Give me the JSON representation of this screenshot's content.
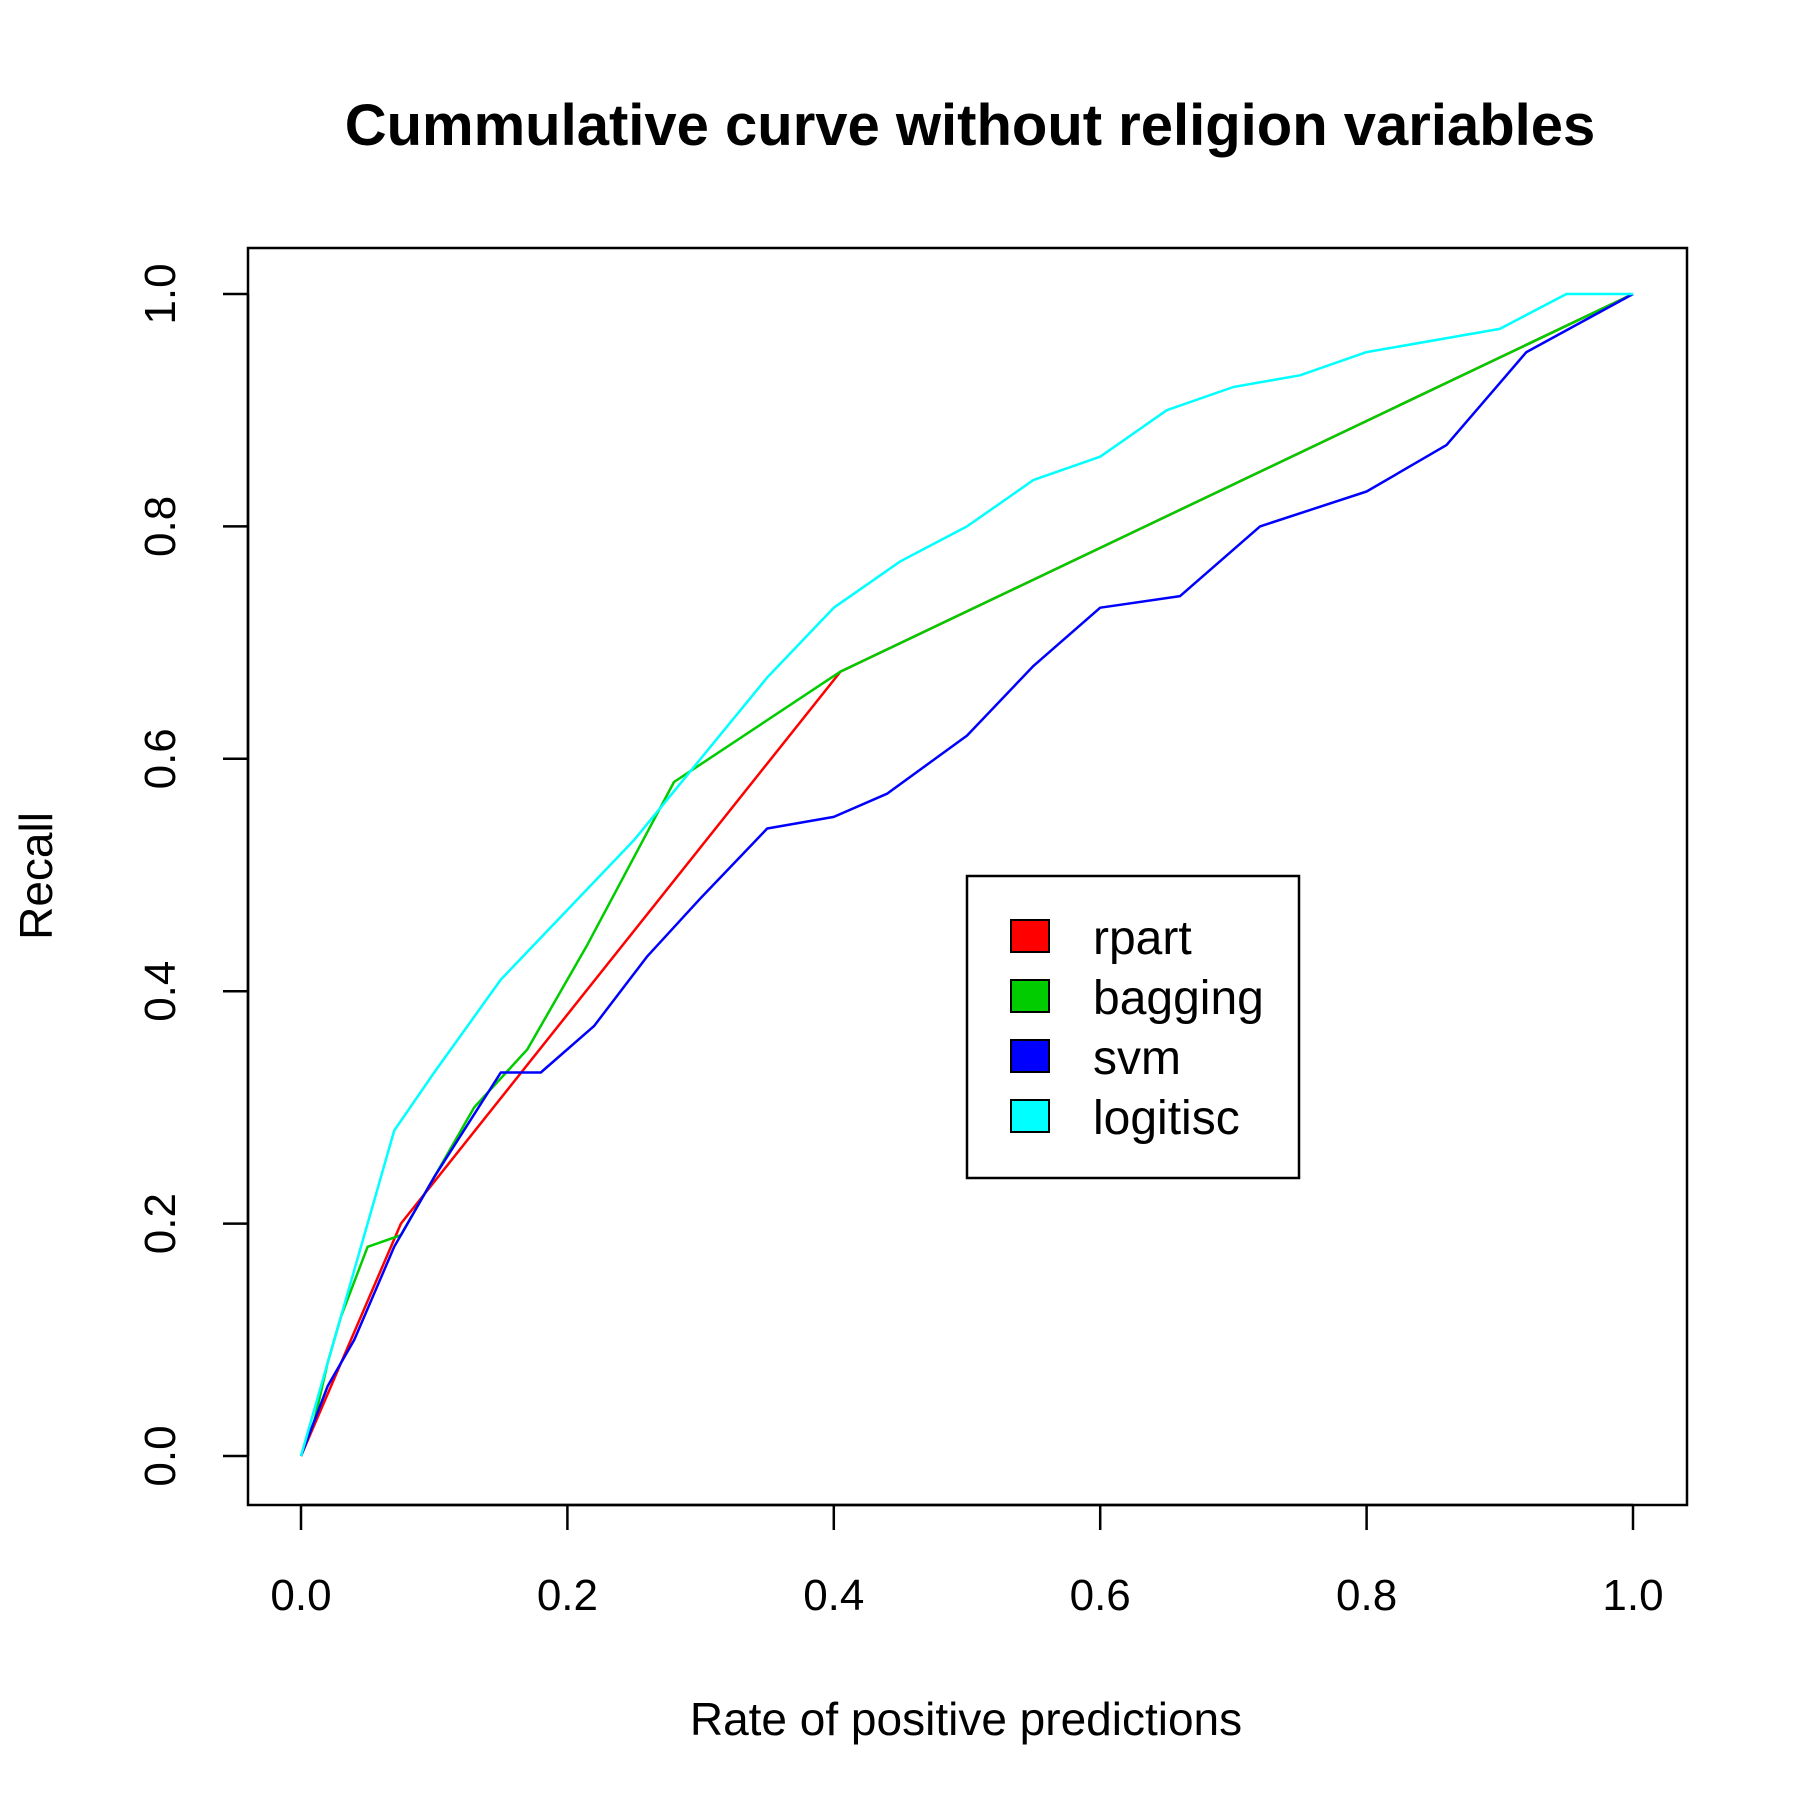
{
  "chart_data": {
    "type": "line",
    "title": "Cummulative curve without religion variables",
    "xlabel": "Rate of positive predictions",
    "ylabel": "Recall",
    "xlim": [
      0.0,
      1.0
    ],
    "ylim": [
      0.0,
      1.0
    ],
    "x_ticks": [
      "0.0",
      "0.2",
      "0.4",
      "0.6",
      "0.8",
      "1.0"
    ],
    "y_ticks": [
      "0.0",
      "0.2",
      "0.4",
      "0.6",
      "0.8",
      "1.0"
    ],
    "grid": false,
    "legend_position": "center-right",
    "series": [
      {
        "name": "rpart",
        "color": "#ff0000",
        "points": [
          [
            0.0,
            0.0
          ],
          [
            0.075,
            0.2
          ],
          [
            0.405,
            0.675
          ],
          [
            1.0,
            1.0
          ]
        ]
      },
      {
        "name": "bagging",
        "color": "#00cc00",
        "points": [
          [
            0.0,
            0.0
          ],
          [
            0.01,
            0.03
          ],
          [
            0.02,
            0.08
          ],
          [
            0.03,
            0.12
          ],
          [
            0.05,
            0.18
          ],
          [
            0.075,
            0.19
          ],
          [
            0.1,
            0.24
          ],
          [
            0.13,
            0.3
          ],
          [
            0.17,
            0.35
          ],
          [
            0.215,
            0.44
          ],
          [
            0.28,
            0.58
          ],
          [
            0.405,
            0.675
          ],
          [
            1.0,
            1.0
          ]
        ]
      },
      {
        "name": "svm",
        "color": "#0000ff",
        "points": [
          [
            0.0,
            0.0
          ],
          [
            0.02,
            0.06
          ],
          [
            0.04,
            0.1
          ],
          [
            0.07,
            0.18
          ],
          [
            0.1,
            0.24
          ],
          [
            0.15,
            0.33
          ],
          [
            0.18,
            0.33
          ],
          [
            0.22,
            0.37
          ],
          [
            0.26,
            0.43
          ],
          [
            0.3,
            0.48
          ],
          [
            0.35,
            0.54
          ],
          [
            0.4,
            0.55
          ],
          [
            0.44,
            0.57
          ],
          [
            0.5,
            0.62
          ],
          [
            0.55,
            0.68
          ],
          [
            0.6,
            0.73
          ],
          [
            0.66,
            0.74
          ],
          [
            0.72,
            0.8
          ],
          [
            0.8,
            0.83
          ],
          [
            0.86,
            0.87
          ],
          [
            0.92,
            0.95
          ],
          [
            1.0,
            1.0
          ]
        ]
      },
      {
        "name": "logitisc",
        "color": "#00ffff",
        "points": [
          [
            0.0,
            0.0
          ],
          [
            0.02,
            0.08
          ],
          [
            0.05,
            0.2
          ],
          [
            0.07,
            0.28
          ],
          [
            0.1,
            0.33
          ],
          [
            0.15,
            0.41
          ],
          [
            0.2,
            0.47
          ],
          [
            0.25,
            0.53
          ],
          [
            0.3,
            0.6
          ],
          [
            0.35,
            0.67
          ],
          [
            0.4,
            0.73
          ],
          [
            0.45,
            0.77
          ],
          [
            0.5,
            0.8
          ],
          [
            0.55,
            0.84
          ],
          [
            0.6,
            0.86
          ],
          [
            0.65,
            0.9
          ],
          [
            0.7,
            0.92
          ],
          [
            0.75,
            0.93
          ],
          [
            0.8,
            0.95
          ],
          [
            0.9,
            0.97
          ],
          [
            0.95,
            1.0
          ],
          [
            1.0,
            1.0
          ]
        ]
      }
    ]
  }
}
